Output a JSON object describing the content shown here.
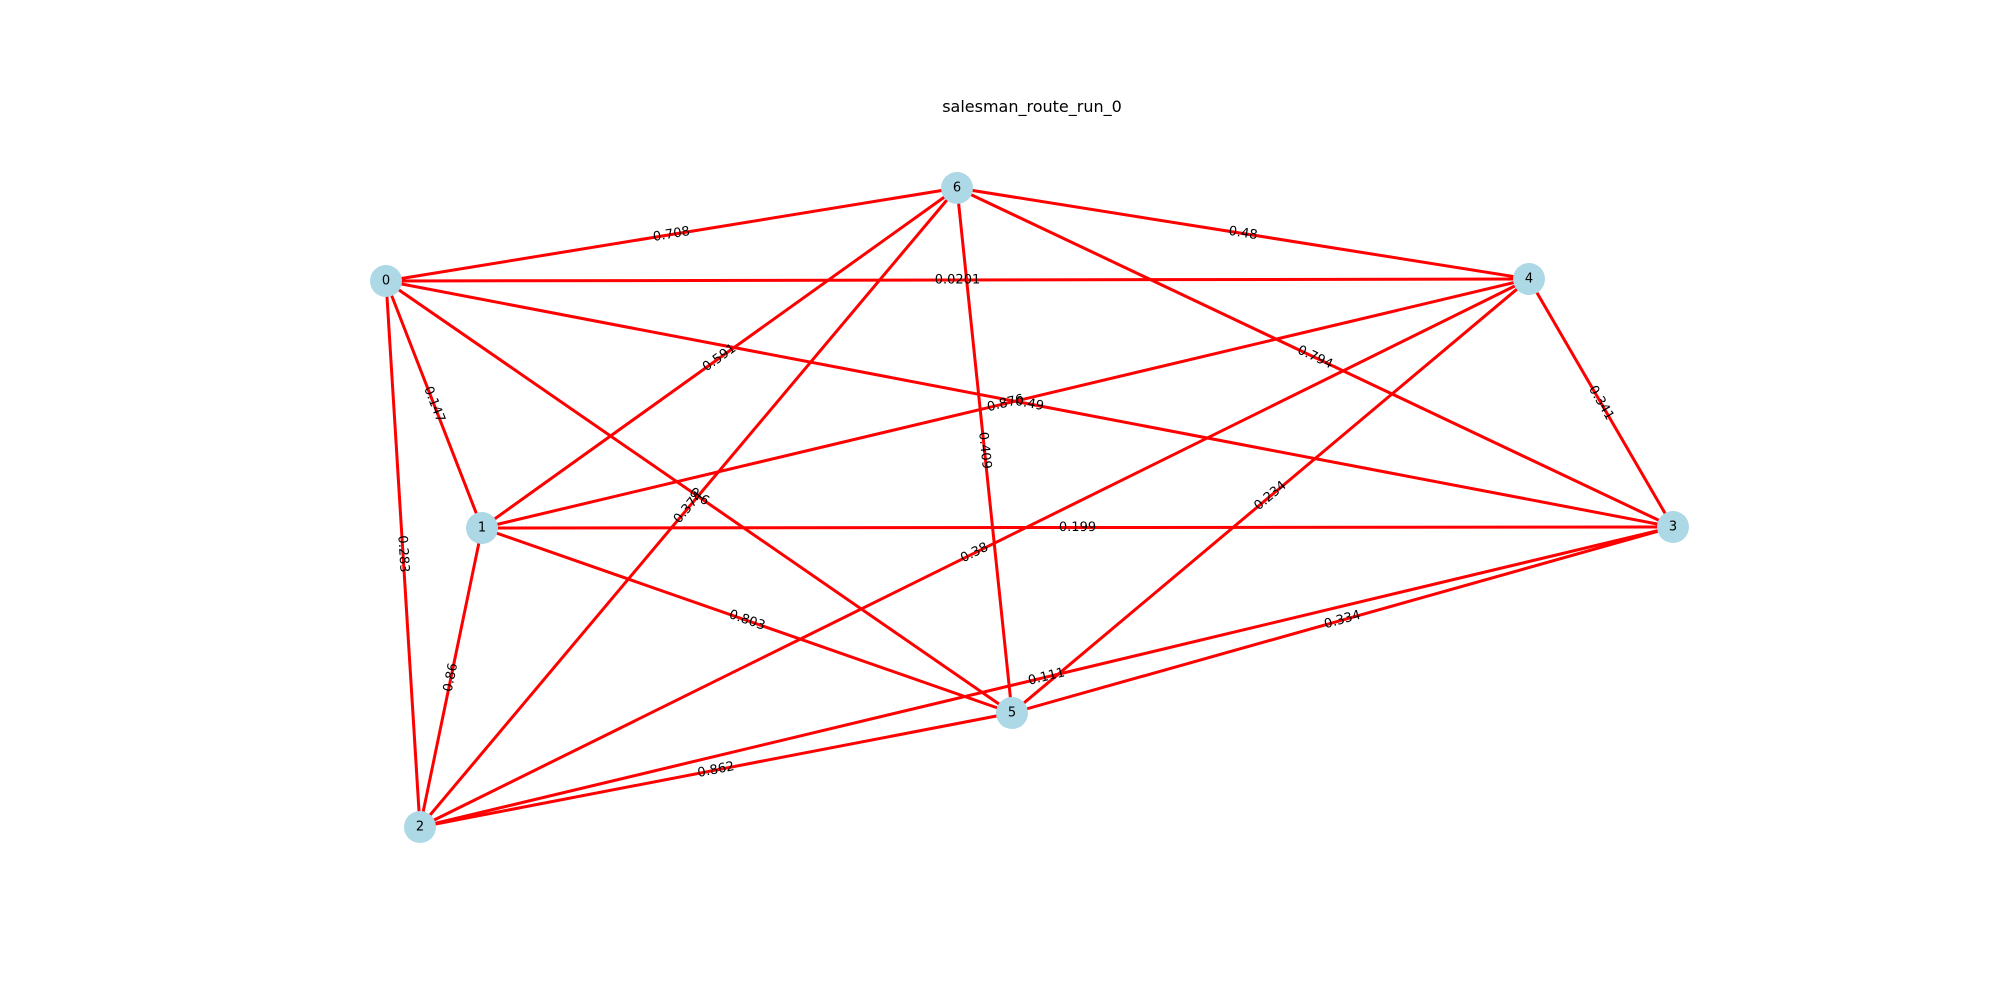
{
  "title": "salesman_route_run_0",
  "colors": {
    "edge": "#ff0000",
    "node": "#add8e6",
    "background": "#ffffff",
    "text": "#000000"
  },
  "nodes": [
    {
      "id": "0"
    },
    {
      "id": "1"
    },
    {
      "id": "2"
    },
    {
      "id": "3"
    },
    {
      "id": "4"
    },
    {
      "id": "5"
    },
    {
      "id": "6"
    }
  ],
  "edges": [
    {
      "source": "0",
      "target": "1",
      "label": "0.147"
    },
    {
      "source": "0",
      "target": "2",
      "label": "0.283"
    },
    {
      "source": "0",
      "target": "3",
      "label": "0.49"
    },
    {
      "source": "0",
      "target": "4",
      "label": "0.0201"
    },
    {
      "source": "0",
      "target": "5",
      "label": "0.6"
    },
    {
      "source": "0",
      "target": "6",
      "label": "0.708"
    },
    {
      "source": "1",
      "target": "2",
      "label": "0.86"
    },
    {
      "source": "1",
      "target": "3",
      "label": "0.199"
    },
    {
      "source": "1",
      "target": "4",
      "label": "0.876"
    },
    {
      "source": "1",
      "target": "5",
      "label": "0.803"
    },
    {
      "source": "1",
      "target": "6",
      "label": "0.591"
    },
    {
      "source": "2",
      "target": "3",
      "label": "0.111"
    },
    {
      "source": "2",
      "target": "4",
      "label": "0.38"
    },
    {
      "source": "2",
      "target": "5",
      "label": "0.862"
    },
    {
      "source": "2",
      "target": "6",
      "label": "0.374"
    },
    {
      "source": "3",
      "target": "4",
      "label": "0.341"
    },
    {
      "source": "3",
      "target": "5",
      "label": "0.334"
    },
    {
      "source": "3",
      "target": "6",
      "label": "0.794"
    },
    {
      "source": "4",
      "target": "5",
      "label": "0.234"
    },
    {
      "source": "4",
      "target": "6",
      "label": "0.48"
    },
    {
      "source": "5",
      "target": "6",
      "label": "0.409"
    }
  ]
}
